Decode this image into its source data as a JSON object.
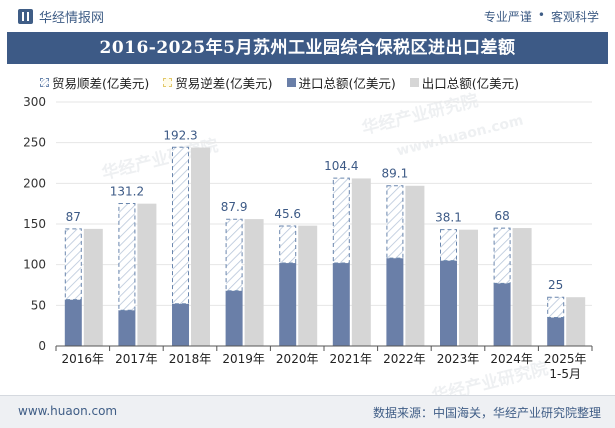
{
  "header": {
    "brand": "华经情报网",
    "tag1": "专业严谨",
    "tag_sep": "•",
    "tag2": "客观科学"
  },
  "title": "2016-2025年5月苏州工业园综合保税区进出口差额",
  "legend": [
    "贸易顺差(亿美元)",
    "贸易逆差(亿美元)",
    "进口总额(亿美元)",
    "出口总额(亿美元)"
  ],
  "colors": {
    "title_bg": "#3d5a86",
    "import": "#6a7fa8",
    "export": "#d6d6d6",
    "surplus_border": "#6a86ad",
    "surplus_hatch": "#b8c6da",
    "label": "#3d5a86"
  },
  "chart_data": {
    "type": "bar",
    "title": "2016-2025年5月苏州工业园综合保税区进出口差额",
    "categories": [
      "2016年",
      "2017年",
      "2018年",
      "2019年",
      "2020年",
      "2021年",
      "2022年",
      "2023年",
      "2024年",
      "2025年 1-5月"
    ],
    "ylim": [
      0,
      300
    ],
    "yticks": [
      0,
      50,
      100,
      150,
      200,
      250,
      300
    ],
    "series": [
      {
        "name": "进口总额(亿美元)",
        "values": [
          57,
          44,
          52,
          68,
          102,
          102,
          108,
          105,
          77,
          35
        ]
      },
      {
        "name": "出口总额(亿美元)",
        "values": [
          144,
          175,
          244,
          156,
          148,
          206,
          197,
          143,
          145,
          60
        ]
      },
      {
        "name": "贸易顺差(亿美元)",
        "values": [
          87,
          131.2,
          192.3,
          87.9,
          45.6,
          104.4,
          89.1,
          38.1,
          68,
          25
        ]
      },
      {
        "name": "贸易逆差(亿美元)",
        "values": [
          0,
          0,
          0,
          0,
          0,
          0,
          0,
          0,
          0,
          0
        ]
      }
    ],
    "surplus_labels": [
      "87",
      "131.2",
      "192.3",
      "87.9",
      "45.6",
      "104.4",
      "89.1",
      "38.1",
      "68",
      "25"
    ],
    "legend_position": "top-left"
  },
  "watermarks": [
    "华经产业研究院",
    "www.huaon.com"
  ],
  "footer": {
    "site": "www.huaon.com",
    "source": "数据来源：中国海关，华经产业研究院整理"
  }
}
